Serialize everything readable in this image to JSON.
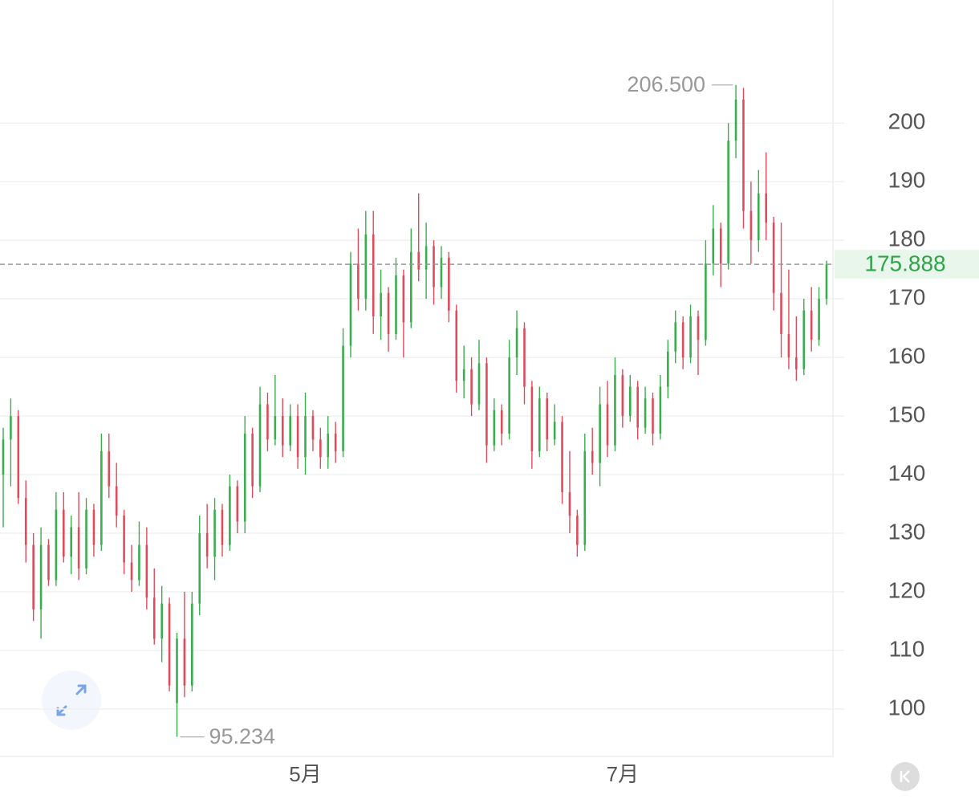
{
  "chart_data": {
    "type": "candlestick",
    "categories": [
      null,
      null,
      null,
      null,
      null,
      null,
      null,
      null,
      null,
      null,
      null,
      null,
      null,
      null,
      null,
      null,
      null,
      null,
      null,
      null,
      null,
      null,
      null,
      null,
      null,
      null,
      null,
      null,
      null,
      null,
      null,
      null,
      null,
      null,
      null,
      null,
      null,
      null,
      null,
      null,
      "5月",
      null,
      null,
      null,
      null,
      null,
      null,
      null,
      null,
      null,
      null,
      null,
      null,
      null,
      null,
      null,
      null,
      null,
      null,
      null,
      null,
      null,
      null,
      null,
      null,
      null,
      null,
      null,
      null,
      null,
      null,
      null,
      null,
      null,
      null,
      null,
      null,
      null,
      null,
      null,
      null,
      null,
      "7月",
      null,
      null,
      null,
      null,
      null,
      null,
      null,
      null,
      null,
      null,
      null,
      null,
      null,
      null,
      null,
      null,
      null,
      null,
      null,
      null,
      null,
      null,
      null,
      null,
      null,
      null,
      null,
      null,
      null,
      null,
      null
    ],
    "ohlc": [
      [
        140,
        148,
        131,
        146
      ],
      [
        146,
        153,
        138,
        150
      ],
      [
        150,
        151,
        135,
        136
      ],
      [
        136,
        139,
        125,
        128
      ],
      [
        128,
        130,
        115,
        117
      ],
      [
        117,
        131,
        112,
        128
      ],
      [
        128,
        129,
        121,
        122
      ],
      [
        122,
        137,
        121,
        134
      ],
      [
        134,
        137,
        125,
        126
      ],
      [
        126,
        133,
        123,
        131
      ],
      [
        131,
        137,
        122,
        124
      ],
      [
        124,
        136,
        123,
        134
      ],
      [
        134,
        135,
        126,
        128
      ],
      [
        128,
        147,
        127,
        144
      ],
      [
        144,
        147,
        136,
        138
      ],
      [
        138,
        142,
        131,
        133
      ],
      [
        133,
        134,
        123,
        125
      ],
      [
        125,
        128,
        120,
        122
      ],
      [
        122,
        132,
        121,
        128
      ],
      [
        128,
        131,
        117,
        119
      ],
      [
        119,
        124,
        111,
        112
      ],
      [
        112,
        121,
        108,
        118
      ],
      [
        118,
        119,
        103,
        104
      ],
      [
        101,
        113,
        95.234,
        112
      ],
      [
        112,
        120,
        102,
        104
      ],
      [
        104,
        120,
        103,
        118
      ],
      [
        118,
        133,
        116,
        130
      ],
      [
        130,
        135,
        124,
        126
      ],
      [
        126,
        136,
        122,
        134
      ],
      [
        134,
        135,
        126,
        128
      ],
      [
        128,
        140,
        127,
        138
      ],
      [
        138,
        139,
        130,
        132
      ],
      [
        132,
        150,
        130,
        147
      ],
      [
        147,
        148,
        136,
        138
      ],
      [
        138,
        155,
        137,
        152
      ],
      [
        152,
        154,
        144,
        146
      ],
      [
        146,
        157,
        145,
        150
      ],
      [
        150,
        153,
        143,
        145
      ],
      [
        145,
        152,
        144,
        150
      ],
      [
        150,
        152,
        141,
        143
      ],
      [
        143,
        154,
        140,
        150
      ],
      [
        150,
        151,
        144,
        146
      ],
      [
        146,
        148,
        141,
        143
      ],
      [
        143,
        150,
        141,
        147
      ],
      [
        147,
        149,
        142,
        144
      ],
      [
        144,
        165,
        143,
        162
      ],
      [
        162,
        178,
        160,
        176
      ],
      [
        176,
        182,
        168,
        170
      ],
      [
        170,
        185,
        168,
        181
      ],
      [
        181,
        185,
        164,
        167
      ],
      [
        167,
        175,
        163,
        171
      ],
      [
        171,
        172,
        161,
        164
      ],
      [
        164,
        177,
        163,
        174
      ],
      [
        174,
        175,
        160,
        166
      ],
      [
        166,
        182,
        165,
        178
      ],
      [
        178,
        188,
        173,
        175
      ],
      [
        175,
        183,
        170,
        179
      ],
      [
        179,
        180,
        169,
        172
      ],
      [
        172,
        179,
        170,
        177
      ],
      [
        177,
        178,
        166,
        168
      ],
      [
        168,
        169,
        154,
        156
      ],
      [
        156,
        162,
        153,
        158
      ],
      [
        158,
        160,
        150,
        152
      ],
      [
        152,
        163,
        151,
        159
      ],
      [
        159,
        160,
        142,
        145
      ],
      [
        145,
        153,
        144,
        151
      ],
      [
        151,
        152,
        145,
        147
      ],
      [
        147,
        163,
        146,
        160
      ],
      [
        160,
        168,
        157,
        165
      ],
      [
        165,
        166,
        152,
        155
      ],
      [
        155,
        156,
        141,
        144
      ],
      [
        144,
        155,
        143,
        153
      ],
      [
        153,
        154,
        144,
        146
      ],
      [
        146,
        152,
        145,
        149
      ],
      [
        149,
        150,
        135,
        137
      ],
      [
        137,
        144,
        130,
        133
      ],
      [
        133,
        134,
        126,
        128
      ],
      [
        128,
        147,
        127,
        144
      ],
      [
        144,
        148,
        140,
        142
      ],
      [
        142,
        155,
        138,
        152
      ],
      [
        152,
        156,
        143,
        145
      ],
      [
        145,
        160,
        144,
        157
      ],
      [
        157,
        158,
        148,
        150
      ],
      [
        150,
        157,
        149,
        155
      ],
      [
        155,
        156,
        146,
        148
      ],
      [
        148,
        155,
        147,
        153
      ],
      [
        153,
        154,
        145,
        147
      ],
      [
        147,
        157,
        146,
        155
      ],
      [
        155,
        163,
        153,
        161
      ],
      [
        161,
        168,
        159,
        166
      ],
      [
        166,
        167,
        158,
        160
      ],
      [
        160,
        169,
        159,
        167
      ],
      [
        167,
        168,
        157,
        163
      ],
      [
        163,
        180,
        162,
        176
      ],
      [
        176,
        186,
        174,
        182
      ],
      [
        182,
        183,
        172,
        176
      ],
      [
        176,
        200,
        175,
        197
      ],
      [
        197,
        206.5,
        194,
        204
      ],
      [
        204,
        206,
        182,
        185
      ],
      [
        185,
        190,
        176,
        180
      ],
      [
        180,
        192,
        178,
        188
      ],
      [
        188,
        195,
        180,
        183
      ],
      [
        183,
        184,
        168,
        171
      ],
      [
        171,
        183,
        160,
        164
      ],
      [
        164,
        175,
        158,
        160
      ],
      [
        160,
        167,
        156,
        158
      ],
      [
        158,
        170,
        157,
        168
      ],
      [
        168,
        172,
        161,
        163
      ],
      [
        163,
        172,
        162,
        170
      ],
      [
        170,
        176.5,
        169,
        175.888
      ]
    ],
    "up_color": "#3aae4e",
    "down_color": "#df4b5c",
    "ylim": [
      91.9,
      221
    ],
    "yticks": [
      100,
      110,
      120,
      130,
      140,
      150,
      160,
      170,
      180,
      190,
      200
    ],
    "grid": true,
    "last_price": 175.888,
    "max_label": {
      "value": 206.5,
      "label": "206.500"
    },
    "min_label": 95.234
  }
}
